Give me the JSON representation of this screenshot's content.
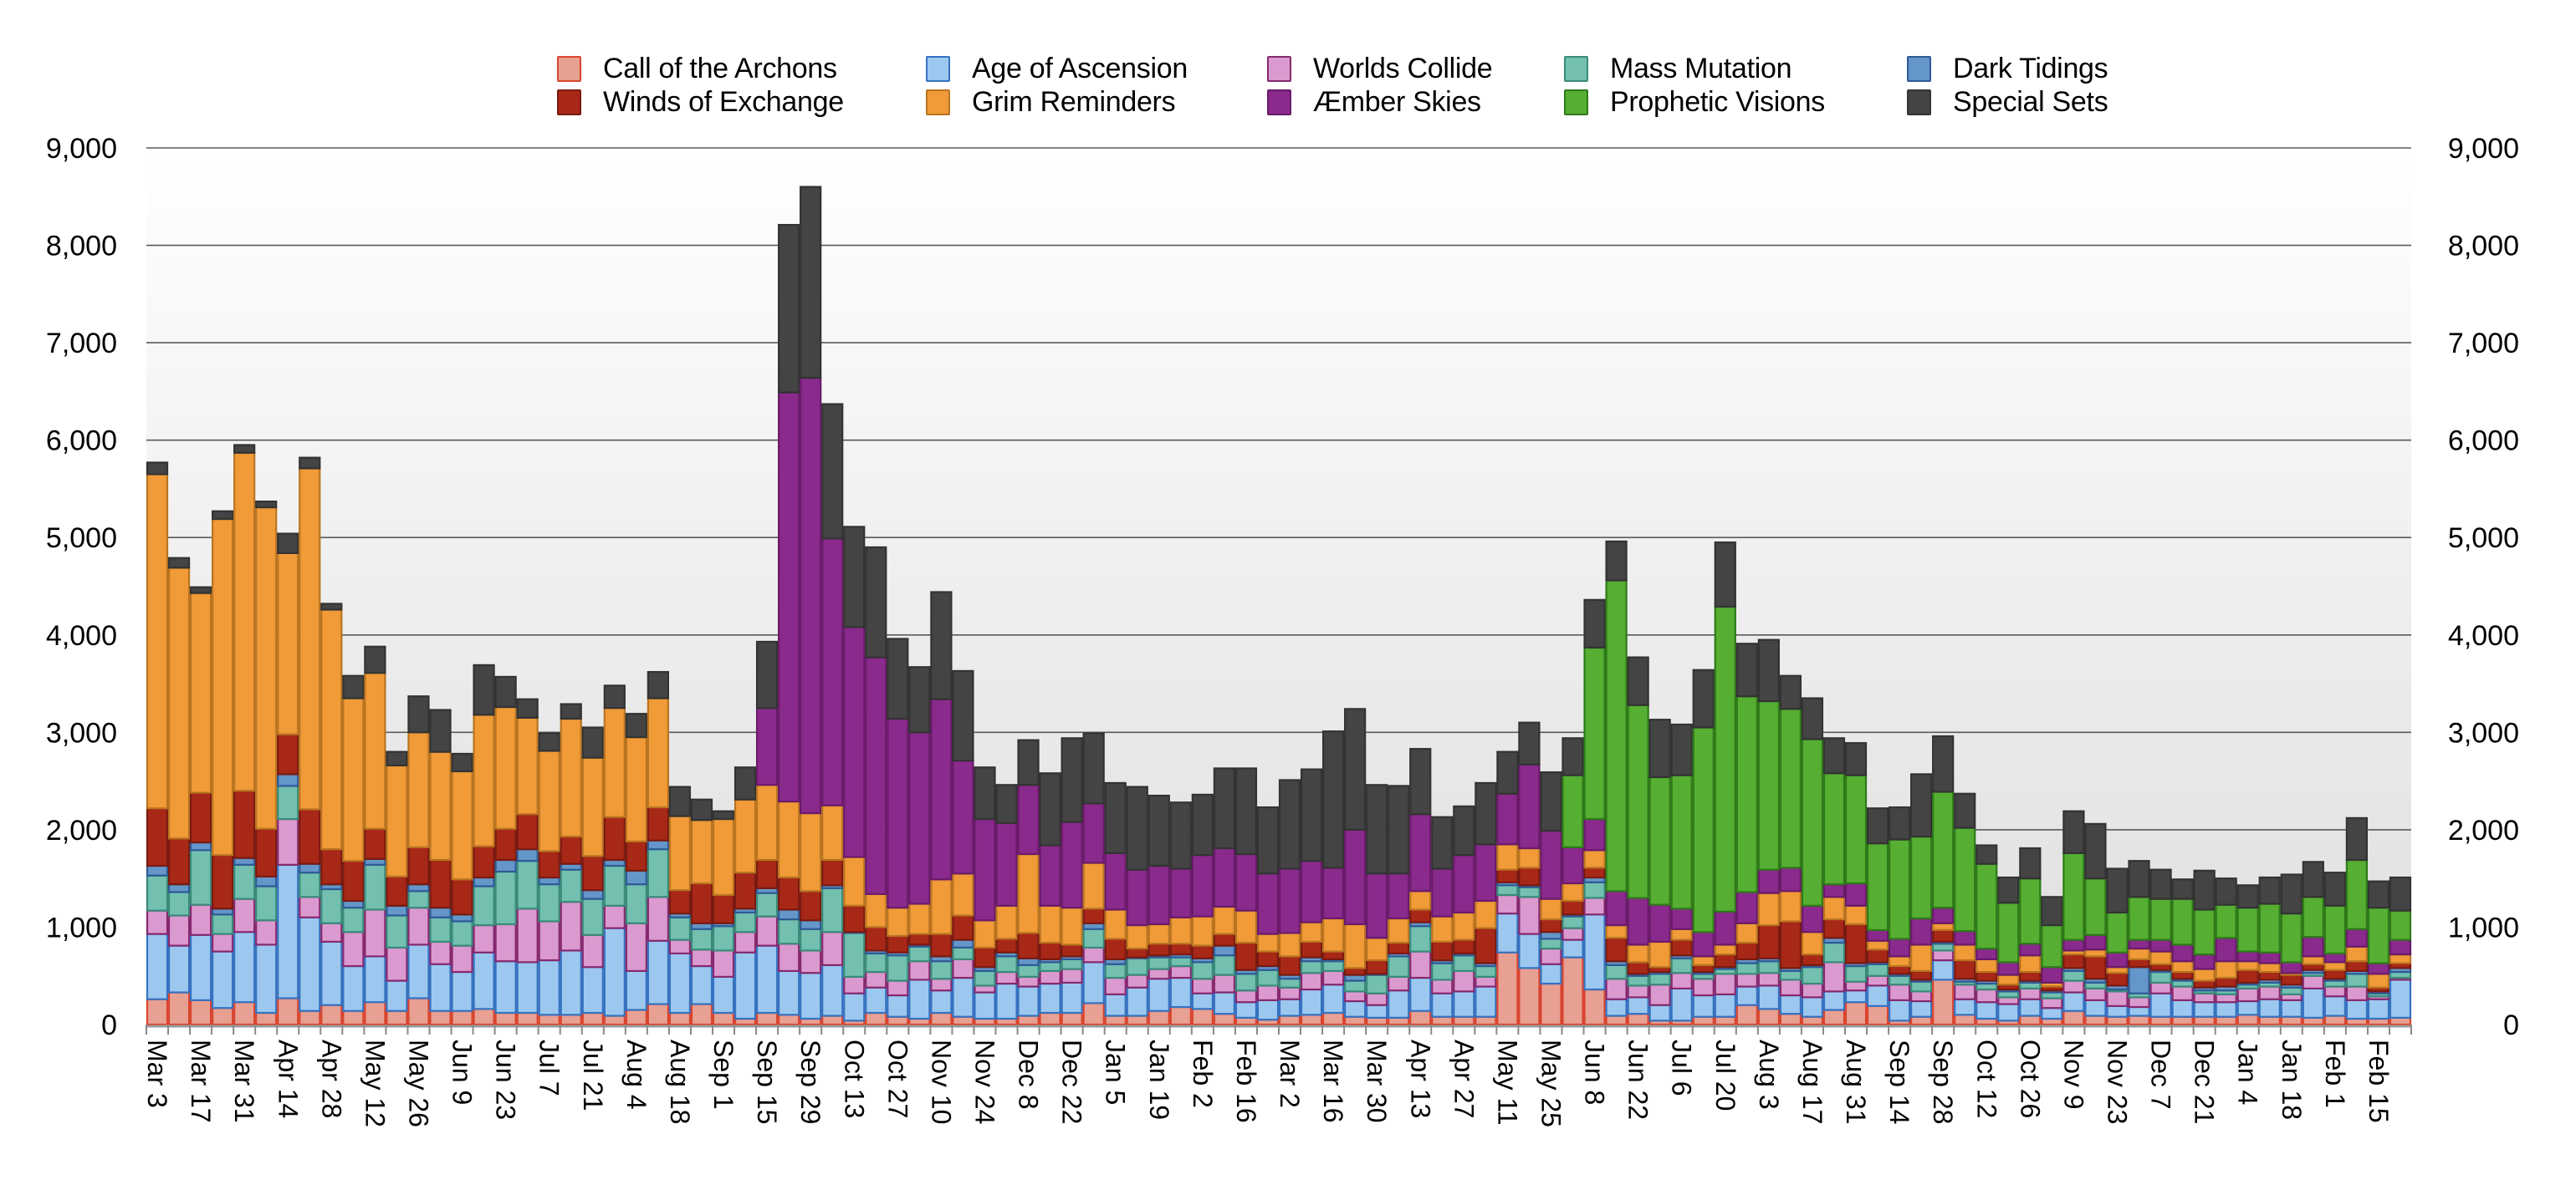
{
  "chart_data": {
    "type": "bar",
    "stacked": true,
    "title": "",
    "xlabel": "",
    "ylabel": "",
    "ylim": [
      0,
      9000
    ],
    "yticks": [
      "0",
      "1,000",
      "2,000",
      "3,000",
      "4,000",
      "5,000",
      "6,000",
      "7,000",
      "8,000",
      "9,000"
    ],
    "ytick_values": [
      0,
      1000,
      2000,
      3000,
      4000,
      5000,
      6000,
      7000,
      8000,
      9000
    ],
    "y_axis_sides": [
      "left",
      "right"
    ],
    "grid": true,
    "legend_position": "top",
    "x_tick_labels": [
      "Mar 3",
      "Mar 17",
      "Mar 31",
      "Apr 14",
      "Apr 28",
      "May 12",
      "May 26",
      "Jun 9",
      "Jun 23",
      "Jul 7",
      "Jul 21",
      "Aug 4",
      "Aug 18",
      "Sep 1",
      "Sep 15",
      "Sep 29",
      "Oct 13",
      "Oct 27",
      "Nov 10",
      "Nov 24",
      "Dec 8",
      "Dec 22",
      "Jan 5",
      "Jan 19",
      "Feb 2",
      "Feb 16",
      "Mar 2",
      "Mar 16",
      "Mar 30",
      "Apr 13",
      "Apr 27",
      "May 11",
      "May 25",
      "Jun 8",
      "Jun 22",
      "Jul 6",
      "Jul 20",
      "Aug 3",
      "Aug 17",
      "Aug 31",
      "Sep 14",
      "Sep 28",
      "Oct 12",
      "Oct 26",
      "Nov 9",
      "Nov 23",
      "Dec 7",
      "Dec 21",
      "Jan 4",
      "Jan 18",
      "Feb 1",
      "Feb 15"
    ],
    "x_tick_every": 2,
    "bar_count": 104,
    "series": [
      {
        "name": "Call of the Archons",
        "color": "#E8A092",
        "edge": "#D9452F",
        "values": [
          260,
          330,
          250,
          170,
          230,
          120,
          270,
          140,
          200,
          140,
          230,
          140,
          270,
          140,
          140,
          160,
          120,
          120,
          100,
          100,
          120,
          90,
          150,
          210,
          120,
          210,
          120,
          60,
          120,
          100,
          60,
          90,
          40,
          120,
          80,
          60,
          120,
          80,
          60,
          60,
          90,
          120,
          120,
          220,
          90,
          90,
          140,
          180,
          160,
          110,
          70,
          50,
          90,
          100,
          120,
          80,
          70,
          70,
          140,
          80,
          80,
          80,
          740,
          580,
          420,
          690,
          360,
          90,
          110,
          40,
          40,
          80,
          80,
          200,
          160,
          110,
          80,
          150,
          230,
          190,
          40,
          80,
          460,
          100,
          60,
          40,
          90,
          60,
          140,
          90,
          80,
          90,
          80,
          80,
          80,
          80,
          100,
          80,
          80,
          70,
          90,
          60,
          60,
          70
        ]
      },
      {
        "name": "Age of Ascension",
        "color": "#9CC8F0",
        "edge": "#3672C0",
        "values": [
          670,
          480,
          670,
          580,
          720,
          700,
          1370,
          960,
          650,
          460,
          470,
          310,
          550,
          480,
          400,
          580,
          530,
          520,
          560,
          660,
          470,
          900,
          400,
          650,
          610,
          390,
          370,
          680,
          690,
          450,
          470,
          520,
          280,
          260,
          220,
          400,
          230,
          400,
          270,
          360,
          300,
          300,
          310,
          420,
          220,
          290,
          330,
          300,
          160,
          220,
          160,
          200,
          170,
          260,
          290,
          160,
          130,
          280,
          340,
          240,
          260,
          310,
          400,
          350,
          200,
          180,
          770,
          170,
          170,
          160,
          330,
          220,
          230,
          190,
          240,
          190,
          200,
          190,
          120,
          210,
          210,
          160,
          200,
          160,
          170,
          170,
          170,
          110,
          190,
          160,
          110,
          90,
          240,
          170,
          150,
          150,
          140,
          180,
          170,
          300,
          200,
          190,
          200,
          390
        ]
      },
      {
        "name": "Worlds Collide",
        "color": "#DA9ACF",
        "edge": "#86296F",
        "values": [
          240,
          310,
          310,
          180,
          340,
          250,
          470,
          210,
          190,
          350,
          480,
          340,
          380,
          230,
          270,
          280,
          380,
          550,
          400,
          500,
          330,
          230,
          490,
          450,
          140,
          170,
          270,
          210,
          300,
          280,
          230,
          340,
          170,
          160,
          150,
          190,
          120,
          190,
          70,
          120,
          100,
          130,
          140,
          150,
          170,
          130,
          100,
          120,
          150,
          180,
          120,
          150,
          120,
          170,
          140,
          100,
          120,
          140,
          270,
          140,
          210,
          100,
          190,
          380,
          160,
          120,
          170,
          210,
          120,
          210,
          160,
          170,
          210,
          130,
          130,
          160,
          140,
          300,
          90,
          100,
          160,
          100,
          100,
          150,
          130,
          70,
          110,
          100,
          120,
          120,
          150,
          100,
          110,
          140,
          90,
          80,
          130,
          130,
          60,
          130,
          100,
          140,
          30,
          20
        ]
      },
      {
        "name": "Mass Mutation",
        "color": "#73C0B0",
        "edge": "#3A8A7A",
        "values": [
          360,
          240,
          560,
          200,
          350,
          350,
          340,
          250,
          350,
          250,
          460,
          330,
          170,
          250,
          250,
          400,
          540,
          490,
          380,
          330,
          370,
          410,
          400,
          490,
          230,
          210,
          250,
          200,
          240,
          250,
          220,
          450,
          450,
          190,
          260,
          150,
          180,
          120,
          150,
          160,
          120,
          90,
          100,
          190,
          140,
          170,
          120,
          90,
          170,
          200,
          170,
          160,
          90,
          120,
          100,
          110,
          190,
          210,
          260,
          170,
          160,
          110,
          100,
          100,
          100,
          120,
          160,
          140,
          100,
          110,
          150,
          50,
          50,
          110,
          120,
          90,
          170,
          200,
          160,
          120,
          90,
          100,
          70,
          30,
          60,
          60,
          60,
          60,
          100,
          60,
          20,
          40,
          110,
          60,
          30,
          40,
          40,
          40,
          70,
          30,
          60,
          130,
          30,
          60
        ]
      },
      {
        "name": "Dark Tidings",
        "color": "#6496C9",
        "edge": "#2E5A96",
        "values": [
          100,
          80,
          80,
          60,
          70,
          100,
          120,
          90,
          50,
          70,
          60,
          100,
          70,
          100,
          70,
          90,
          120,
          120,
          70,
          60,
          90,
          60,
          140,
          90,
          40,
          60,
          30,
          40,
          50,
          100,
          90,
          30,
          10,
          30,
          30,
          20,
          50,
          80,
          40,
          40,
          70,
          30,
          30,
          60,
          50,
          10,
          20,
          30,
          40,
          100,
          40,
          40,
          40,
          40,
          20,
          60,
          10,
          30,
          40,
          30,
          20,
          30,
          30,
          20,
          70,
          20,
          50,
          40,
          20,
          20,
          30,
          20,
          20,
          40,
          30,
          30,
          20,
          50,
          30,
          20,
          20,
          20,
          20,
          30,
          30,
          20,
          20,
          20,
          30,
          40,
          40,
          270,
          20,
          20,
          30,
          40,
          20,
          30,
          30,
          30,
          20,
          30,
          20,
          40
        ]
      },
      {
        "name": "Winds of Exchange",
        "color": "#A82818",
        "edge": "#7A1A10",
        "values": [
          590,
          470,
          510,
          550,
          690,
          490,
          410,
          560,
          360,
          410,
          310,
          300,
          380,
          490,
          360,
          320,
          320,
          360,
          270,
          280,
          350,
          440,
          300,
          340,
          240,
          410,
          290,
          370,
          290,
          330,
          300,
          260,
          270,
          240,
          170,
          110,
          230,
          250,
          200,
          140,
          260,
          170,
          120,
          150,
          210,
          90,
          120,
          110,
          130,
          120,
          280,
          150,
          190,
          160,
          80,
          70,
          140,
          110,
          130,
          190,
          140,
          360,
          130,
          180,
          130,
          140,
          100,
          240,
          120,
          50,
          160,
          70,
          130,
          170,
          340,
          480,
          110,
          190,
          400,
          130,
          80,
          90,
          120,
          190,
          90,
          50,
          90,
          40,
          140,
          230,
          130,
          80,
          60,
          70,
          70,
          90,
          130,
          80,
          100,
          60,
          90,
          100,
          40,
          50
        ]
      },
      {
        "name": "Grim Reminders",
        "color": "#F09A38",
        "edge": "#B97420",
        "values": [
          3430,
          2780,
          2050,
          3450,
          3470,
          3300,
          1860,
          3500,
          2460,
          1670,
          1600,
          1140,
          1180,
          1110,
          1110,
          1350,
          1250,
          990,
          1030,
          1210,
          1010,
          1120,
          1070,
          1120,
          760,
          650,
          780,
          750,
          770,
          780,
          800,
          560,
          500,
          340,
          290,
          310,
          560,
          430,
          280,
          340,
          810,
          380,
          380,
          470,
          300,
          240,
          200,
          270,
          300,
          280,
          330,
          180,
          240,
          200,
          340,
          450,
          230,
          250,
          190,
          260,
          280,
          280,
          260,
          200,
          210,
          180,
          180,
          130,
          180,
          260,
          110,
          90,
          100,
          200,
          330,
          310,
          230,
          230,
          190,
          90,
          100,
          270,
          70,
          160,
          130,
          100,
          170,
          40,
          40,
          70,
          60,
          110,
          130,
          110,
          120,
          170,
          90,
          90,
          20,
          80,
          80,
          150,
          140,
          90
        ]
      },
      {
        "name": "Æmber Skies",
        "color": "#8A2A8C",
        "edge": "#6A1A6A",
        "values": [
          0,
          0,
          0,
          0,
          0,
          0,
          0,
          0,
          0,
          0,
          0,
          0,
          0,
          0,
          0,
          0,
          0,
          0,
          0,
          0,
          0,
          0,
          0,
          0,
          0,
          0,
          0,
          0,
          790,
          4200,
          4470,
          2740,
          2360,
          2430,
          1940,
          1760,
          1850,
          1160,
          1040,
          850,
          710,
          620,
          880,
          610,
          580,
          570,
          600,
          500,
          630,
          600,
          580,
          620,
          660,
          630,
          520,
          970,
          660,
          460,
          790,
          490,
          590,
          580,
          520,
          860,
          700,
          370,
          320,
          350,
          480,
          380,
          210,
          250,
          340,
          320,
          240,
          240,
          270,
          130,
          230,
          110,
          180,
          270,
          160,
          140,
          110,
          130,
          120,
          160,
          110,
          150,
          150,
          90,
          120,
          170,
          150,
          240,
          100,
          110,
          110,
          200,
          90,
          180,
          110,
          150
        ]
      },
      {
        "name": "Prophetic Visions",
        "color": "#56AE32",
        "edge": "#2E7A18",
        "values": [
          0,
          0,
          0,
          0,
          0,
          0,
          0,
          0,
          0,
          0,
          0,
          0,
          0,
          0,
          0,
          0,
          0,
          0,
          0,
          0,
          0,
          0,
          0,
          0,
          0,
          0,
          0,
          0,
          0,
          0,
          0,
          0,
          0,
          0,
          0,
          0,
          0,
          0,
          0,
          0,
          0,
          0,
          0,
          0,
          0,
          0,
          0,
          0,
          0,
          0,
          0,
          0,
          0,
          0,
          0,
          0,
          0,
          0,
          0,
          0,
          0,
          0,
          0,
          0,
          0,
          740,
          1760,
          3190,
          1980,
          1310,
          1370,
          2100,
          3130,
          2010,
          1730,
          1630,
          1710,
          1140,
          1110,
          890,
          1020,
          840,
          1190,
          1060,
          870,
          610,
          670,
          430,
          890,
          580,
          410,
          440,
          420,
          470,
          460,
          340,
          450,
          500,
          500,
          410,
          490,
          710,
          570,
          300
        ]
      },
      {
        "name": "Special Sets",
        "color": "#444444",
        "edge": "#333333",
        "values": [
          120,
          100,
          60,
          80,
          80,
          60,
          200,
          110,
          60,
          230,
          270,
          140,
          370,
          430,
          180,
          510,
          310,
          190,
          180,
          150,
          310,
          230,
          240,
          270,
          300,
          210,
          80,
          330,
          680,
          1720,
          1960,
          1380,
          1030,
          1130,
          820,
          670,
          1100,
          920,
          530,
          390,
          460,
          740,
          860,
          720,
          720,
          850,
          720,
          680,
          620,
          820,
          880,
          680,
          910,
          940,
          1400,
          1240,
          910,
          900,
          670,
          530,
          500,
          630,
          430,
          430,
          600,
          380,
          490,
          400,
          490,
          590,
          520,
          590,
          660,
          540,
          630,
          340,
          420,
          360,
          330,
          360,
          330,
          640,
          570,
          350,
          190,
          260,
          310,
          290,
          430,
          560,
          450,
          370,
          300,
          200,
          400,
          270,
          230,
          270,
          400,
          360,
          340,
          430,
          270,
          340
        ]
      }
    ]
  },
  "legend": {
    "columns": [
      [
        "Call of the Archons",
        "Winds of Exchange"
      ],
      [
        "Age of Ascension",
        "Grim Reminders"
      ],
      [
        "Worlds Collide",
        "Æmber Skies"
      ],
      [
        "Mass Mutation",
        "Prophetic Visions"
      ],
      [
        "Dark Tidings",
        "Special Sets"
      ]
    ]
  },
  "colors": {
    "grid": "#5a5a5a",
    "axis_tick": "#8a8a8a",
    "plot_bg_top": "#ffffff",
    "plot_bg_bottom": "#dedede"
  }
}
